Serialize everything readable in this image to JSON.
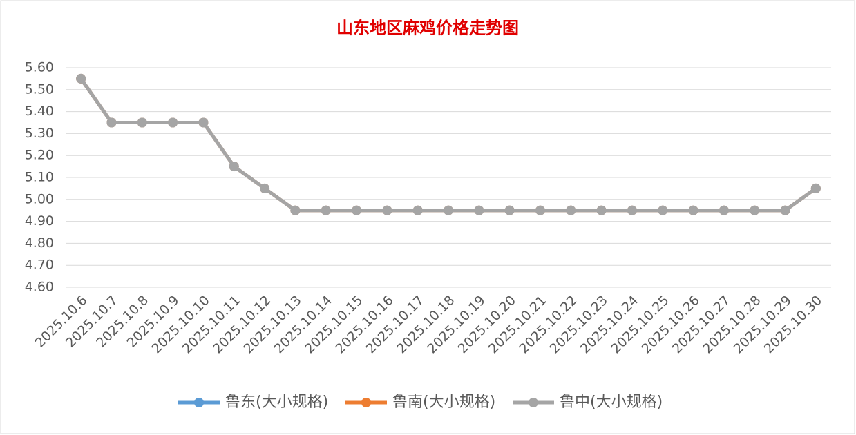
{
  "chart_data": {
    "type": "line",
    "title": "山东地区麻鸡价格走势图",
    "categories": [
      "2025.10.6",
      "2025.10.7",
      "2025.10.8",
      "2025.10.9",
      "2025.10.10",
      "2025.10.11",
      "2025.10.12",
      "2025.10.13",
      "2025.10.14",
      "2025.10.15",
      "2025.10.16",
      "2025.10.17",
      "2025.10.18",
      "2025.10.19",
      "2025.10.20",
      "2025.10.21",
      "2025.10.22",
      "2025.10.23",
      "2025.10.24",
      "2025.10.25",
      "2025.10.26",
      "2025.10.27",
      "2025.10.28",
      "2025.10.29",
      "2025.10.30"
    ],
    "series": [
      {
        "name": "鲁东(大小规格)",
        "color": "#5b9bd5",
        "values": [
          5.55,
          5.35,
          5.35,
          5.35,
          5.35,
          5.15,
          5.05,
          4.95,
          4.95,
          4.95,
          4.95,
          4.95,
          4.95,
          4.95,
          4.95,
          4.95,
          4.95,
          4.95,
          4.95,
          4.95,
          4.95,
          4.95,
          4.95,
          4.95,
          5.05
        ]
      },
      {
        "name": "鲁南(大小规格)",
        "color": "#ed7d31",
        "values": [
          5.55,
          5.35,
          5.35,
          5.35,
          5.35,
          5.15,
          5.05,
          4.95,
          4.95,
          4.95,
          4.95,
          4.95,
          4.95,
          4.95,
          4.95,
          4.95,
          4.95,
          4.95,
          4.95,
          4.95,
          4.95,
          4.95,
          4.95,
          4.95,
          5.05
        ]
      },
      {
        "name": "鲁中(大小规格)",
        "color": "#a5a5a5",
        "values": [
          5.55,
          5.35,
          5.35,
          5.35,
          5.35,
          5.15,
          5.05,
          4.95,
          4.95,
          4.95,
          4.95,
          4.95,
          4.95,
          4.95,
          4.95,
          4.95,
          4.95,
          4.95,
          4.95,
          4.95,
          4.95,
          4.95,
          4.95,
          4.95,
          5.05
        ]
      }
    ],
    "ylim": [
      4.6,
      5.6
    ],
    "yticks": [
      {
        "value": 4.6,
        "label": "4.60"
      },
      {
        "value": 4.7,
        "label": "4.70"
      },
      {
        "value": 4.8,
        "label": "4.80"
      },
      {
        "value": 4.9,
        "label": "4.90"
      },
      {
        "value": 5.0,
        "label": "5.00"
      },
      {
        "value": 5.1,
        "label": "5.10"
      },
      {
        "value": 5.2,
        "label": "5.20"
      },
      {
        "value": 5.3,
        "label": "5.30"
      },
      {
        "value": 5.4,
        "label": "5.40"
      },
      {
        "value": 5.5,
        "label": "5.50"
      },
      {
        "value": 5.6,
        "label": "5.60"
      }
    ],
    "grid": true,
    "legend": "bottom"
  }
}
